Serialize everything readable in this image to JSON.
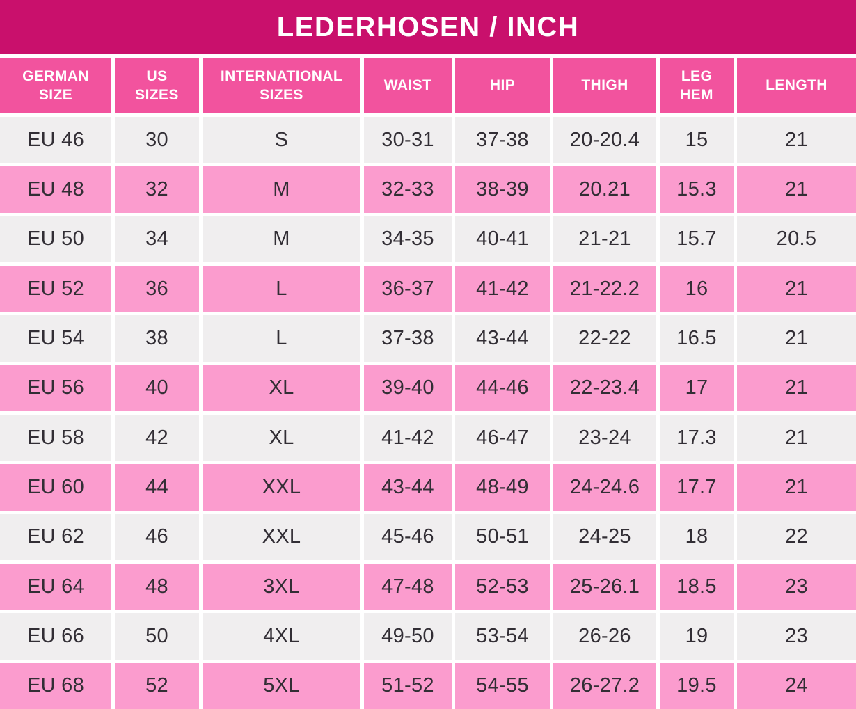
{
  "chart_data": {
    "type": "table",
    "title": "LEDERHOSEN / INCH",
    "columns": [
      {
        "id": "german-size",
        "label": "GERMAN\nSIZE"
      },
      {
        "id": "us-sizes",
        "label": "US\nSIZES"
      },
      {
        "id": "international-sizes",
        "label": "INTERNATIONAL\nSIZES"
      },
      {
        "id": "waist",
        "label": "WAIST"
      },
      {
        "id": "hip",
        "label": "HIP"
      },
      {
        "id": "thigh",
        "label": "THIGH"
      },
      {
        "id": "leg-hem",
        "label": "LEG\nHEM"
      },
      {
        "id": "length",
        "label": "LENGTH"
      }
    ],
    "rows": [
      [
        "EU 46",
        "30",
        "S",
        "30-31",
        "37-38",
        "20-20.4",
        "15",
        "21"
      ],
      [
        "EU 48",
        "32",
        "M",
        "32-33",
        "38-39",
        "20.21",
        "15.3",
        "21"
      ],
      [
        "EU 50",
        "34",
        "M",
        "34-35",
        "40-41",
        "21-21",
        "15.7",
        "20.5"
      ],
      [
        "EU 52",
        "36",
        "L",
        "36-37",
        "41-42",
        "21-22.2",
        "16",
        "21"
      ],
      [
        "EU 54",
        "38",
        "L",
        "37-38",
        "43-44",
        "22-22",
        "16.5",
        "21"
      ],
      [
        "EU 56",
        "40",
        "XL",
        "39-40",
        "44-46",
        "22-23.4",
        "17",
        "21"
      ],
      [
        "EU 58",
        "42",
        "XL",
        "41-42",
        "46-47",
        "23-24",
        "17.3",
        "21"
      ],
      [
        "EU 60",
        "44",
        "XXL",
        "43-44",
        "48-49",
        "24-24.6",
        "17.7",
        "21"
      ],
      [
        "EU 62",
        "46",
        "XXL",
        "45-46",
        "50-51",
        "24-25",
        "18",
        "22"
      ],
      [
        "EU 64",
        "48",
        "3XL",
        "47-48",
        "52-53",
        "25-26.1",
        "18.5",
        "23"
      ],
      [
        "EU 66",
        "50",
        "4XL",
        "49-50",
        "53-54",
        "26-26",
        "19",
        "23"
      ],
      [
        "EU 68",
        "52",
        "5XL",
        "51-52",
        "54-55",
        "26-27.2",
        "19.5",
        "24"
      ]
    ],
    "layout_hints": {
      "row_striping": [
        "gray",
        "pink"
      ],
      "header_style": "pink-bg-white-text",
      "grid_gap_color": "#FFFFFF"
    }
  },
  "colors": {
    "title_bar_bg": "#C9106C",
    "header_bg": "#F2539E",
    "row_pink": "#FB9CCE",
    "row_gray": "#F0EEEF",
    "text_dark": "#322E35",
    "text_light": "#FFFFFF"
  }
}
